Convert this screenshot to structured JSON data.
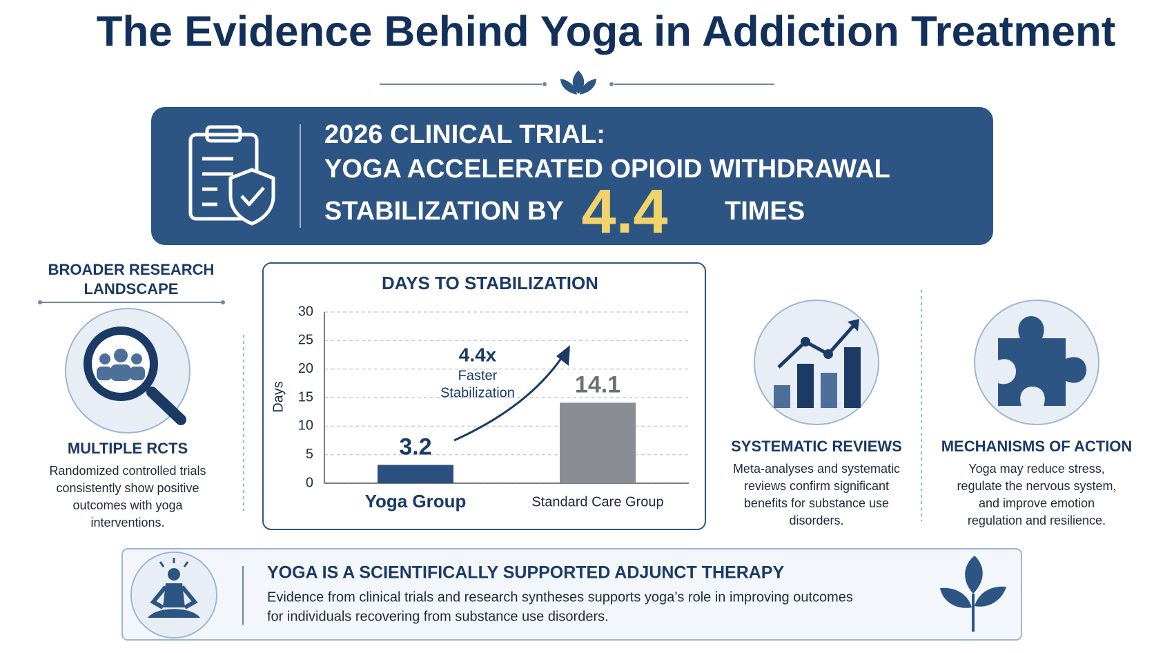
{
  "header": {
    "title": "The Evidence Behind Yoga in Addiction Treatment"
  },
  "banner": {
    "line1": "2026 CLINICAL TRIAL:",
    "line2": "YOGA ACCELERATED OPIOID WITHDRAWAL",
    "line3": "STABILIZATION BY",
    "highlight": 4.4,
    "line3_end": "TIMES"
  },
  "left_section": {
    "heading": [
      "BROADER RESEARCH",
      "LANDSCAPE"
    ],
    "card": {
      "title": "MULTIPLE RCTS",
      "lines": [
        "Randomized controlled trials",
        "consistently show positive",
        "outcomes with yoga",
        "interventions."
      ]
    }
  },
  "chart_data": {
    "type": "bar",
    "title": "DAYS TO STABILIZATION",
    "y_label": "Days",
    "categories": [
      "Yoga Group",
      "Standard Care Group"
    ],
    "values": [
      3.2,
      14.1
    ],
    "colors": [
      "#2b4f7e",
      "#8a8d93"
    ],
    "ylim": [
      0,
      30
    ],
    "yticks": [
      0,
      5,
      10,
      15,
      20,
      25,
      30
    ],
    "grid": true,
    "annotation": {
      "headline": "4.4x",
      "lines": [
        "Faster",
        "Stabilization"
      ]
    }
  },
  "right_cards": [
    {
      "title": "SYSTEMATIC REVIEWS",
      "lines": [
        "Meta-analyses and systematic",
        "reviews confirm significant",
        "benefits for substance use",
        "disorders."
      ]
    },
    {
      "title": "MECHANISMS OF ACTION",
      "lines": [
        "Yoga may reduce stress,",
        "regulate the nervous system,",
        "and improve emotion",
        "regulation and resilience."
      ]
    }
  ],
  "footer": {
    "title": "YOGA IS A SCIENTIFICALLY SUPPORTED ADJUNCT THERAPY",
    "lines": [
      "Evidence from clinical trials and research syntheses supports yoga’s role in improving outcomes",
      "for individuals recovering from substance use disorders."
    ]
  }
}
